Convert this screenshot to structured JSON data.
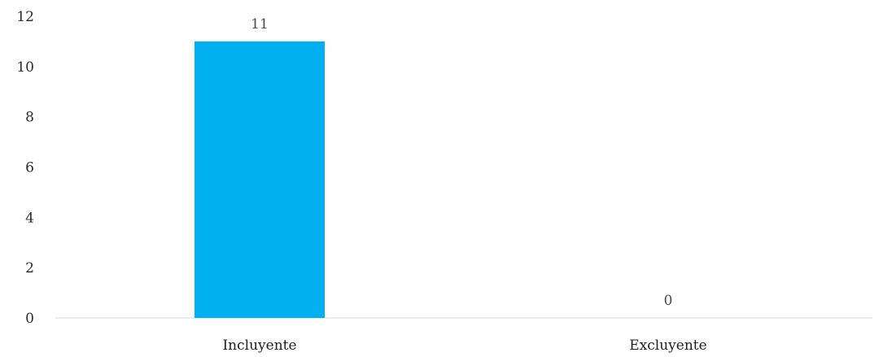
{
  "chart_data": {
    "type": "bar",
    "categories": [
      "Incluyente",
      "Excluyente"
    ],
    "values": [
      11,
      0
    ],
    "data_labels": [
      "11",
      "0"
    ],
    "y_ticks": [
      "0",
      "2",
      "4",
      "6",
      "8",
      "10",
      "12"
    ],
    "ylim": [
      0,
      12
    ],
    "grid": false,
    "legend": "none",
    "bar_color": "#00b0f0",
    "axis_color": "#d9d9d9"
  }
}
